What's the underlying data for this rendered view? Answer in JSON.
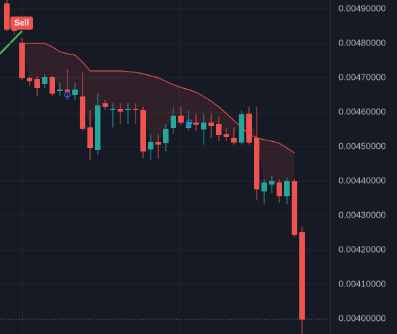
{
  "chart_data": {
    "type": "candlestick",
    "up_color": "#26a69a",
    "down_color": "#ef5350",
    "open": [
      0.004916,
      0.004866,
      0.004802,
      0.0047,
      0.004696,
      0.004682,
      0.004702,
      0.004662,
      0.004666,
      0.00465,
      0.004646,
      0.004556,
      0.00449,
      0.004626,
      0.004606,
      0.00461,
      0.004606,
      0.00461,
      0.004606,
      0.004492,
      0.004514,
      0.00451,
      0.004554,
      0.00459,
      0.004554,
      0.00457,
      0.00455,
      0.00457,
      0.004566,
      0.004536,
      0.004526,
      0.004512,
      0.004596,
      0.004526,
      0.00437,
      0.00439,
      0.004396,
      0.004356,
      0.0044,
      0.004252
    ],
    "high": [
      0.004926,
      0.004876,
      0.004816,
      0.004706,
      0.004706,
      0.00471,
      0.004706,
      0.004686,
      0.004726,
      0.004686,
      0.004716,
      0.004606,
      0.004656,
      0.004636,
      0.004626,
      0.004626,
      0.004626,
      0.004626,
      0.004616,
      0.004536,
      0.004536,
      0.004566,
      0.004616,
      0.004616,
      0.004606,
      0.004596,
      0.004596,
      0.004596,
      0.004586,
      0.004556,
      0.004556,
      0.004606,
      0.004616,
      0.004616,
      0.004406,
      0.004416,
      0.004406,
      0.00441,
      0.004406,
      0.004266
    ],
    "low": [
      0.004836,
      0.004826,
      0.004694,
      0.004676,
      0.004646,
      0.00467,
      0.004646,
      0.004646,
      0.004636,
      0.004636,
      0.004546,
      0.004462,
      0.004476,
      0.004606,
      0.004556,
      0.004566,
      0.004566,
      0.004566,
      0.004466,
      0.00446,
      0.004466,
      0.004486,
      0.004536,
      0.004562,
      0.004546,
      0.004546,
      0.004506,
      0.004526,
      0.004516,
      0.004516,
      0.004506,
      0.004506,
      0.004506,
      0.004346,
      0.004332,
      0.004366,
      0.004336,
      0.004332,
      0.004236,
      0.003956
    ],
    "close": [
      0.00484,
      0.004836,
      0.0047,
      0.00469,
      0.00467,
      0.004702,
      0.004654,
      0.004666,
      0.00466,
      0.004666,
      0.004552,
      0.004496,
      0.00462,
      0.004616,
      0.00461,
      0.004602,
      0.00461,
      0.004606,
      0.004486,
      0.004514,
      0.004506,
      0.004552,
      0.00459,
      0.00457,
      0.004572,
      0.004564,
      0.00457,
      0.00456,
      0.004534,
      0.004528,
      0.004512,
      0.004594,
      0.004512,
      0.004376,
      0.004396,
      0.0044,
      0.004356,
      0.0044,
      0.004244,
      0.003998
    ],
    "band": {
      "color": "#ef5350",
      "values": [
        null,
        null,
        0.0048,
        0.0048,
        0.0048,
        0.0048,
        0.00479,
        0.004776,
        0.00477,
        0.004766,
        0.004746,
        0.00472,
        0.00472,
        0.00472,
        0.00472,
        0.00472,
        0.004718,
        0.004716,
        0.004712,
        0.004706,
        0.0047,
        0.00469,
        0.00468,
        0.004672,
        0.004666,
        0.004658,
        0.004646,
        0.004632,
        0.004616,
        0.004596,
        0.004576,
        0.004556,
        0.004536,
        0.004526,
        0.00452,
        0.004516,
        0.00451,
        0.004496,
        0.004482,
        null
      ]
    },
    "annotations": [
      {
        "text": "Sell",
        "color": "#ef5350"
      }
    ],
    "ylim": [
      0.003956,
      0.004926
    ],
    "yticks": [
      {
        "value": 0.0049,
        "label": "0.00490000"
      },
      {
        "value": 0.0048,
        "label": "0.00480000"
      },
      {
        "value": 0.0047,
        "label": "0.00470000"
      },
      {
        "value": 0.0046,
        "label": "0.00460000"
      },
      {
        "value": 0.0045,
        "label": "0.00450000"
      },
      {
        "value": 0.0044,
        "label": "0.00440000"
      },
      {
        "value": 0.0043,
        "label": "0.00430000"
      },
      {
        "value": 0.0042,
        "label": "0.00420000"
      },
      {
        "value": 0.0041,
        "label": "0.00410000"
      },
      {
        "value": 0.004,
        "label": "0.00400000"
      }
    ],
    "grid": true
  }
}
